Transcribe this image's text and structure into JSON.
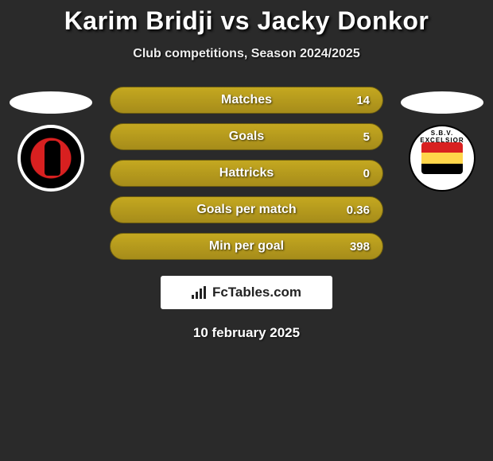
{
  "title": "Karim Bridji vs Jacky Donkor",
  "subtitle": "Club competitions, Season 2024/2025",
  "date": "10 february 2025",
  "branding": "FcTables.com",
  "left_club_logo_alt": "helmond-sport-logo",
  "right_club_logo_alt": "excelsior-logo",
  "right_club_text": "S.B.V. EXCELSIOR",
  "colors": {
    "background": "#2a2a2a",
    "bar_gradient_top": "#c4a820",
    "bar_gradient_bottom": "#a68c1a",
    "bar_border": "#6b5c10",
    "white": "#ffffff",
    "black": "#000000",
    "red": "#d82020",
    "yellow": "#ffd54a"
  },
  "stats": [
    {
      "label": "Matches",
      "value": "14"
    },
    {
      "label": "Goals",
      "value": "5"
    },
    {
      "label": "Hattricks",
      "value": "0"
    },
    {
      "label": "Goals per match",
      "value": "0.36"
    },
    {
      "label": "Min per goal",
      "value": "398"
    }
  ]
}
